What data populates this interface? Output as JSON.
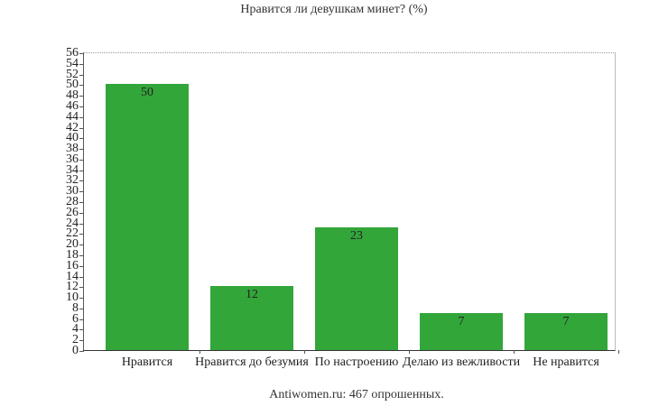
{
  "title": "Нравится ли девушкам минет? (%)",
  "footer": "Antiwomen.ru: 467 опрошенных.",
  "colors": {
    "bar": "#33a63a",
    "axis": "#555555"
  },
  "chart_data": {
    "type": "bar",
    "title": "Нравится ли девушкам минет? (%)",
    "xlabel": "",
    "ylabel": "",
    "categories": [
      "Нравится",
      "Нравится до безумия",
      "По настроению",
      "Делаю из вежливости",
      "Не нравится"
    ],
    "values": [
      50,
      12,
      23,
      7,
      7
    ],
    "ylim": [
      0,
      56
    ],
    "yticks": [
      0,
      2,
      4,
      6,
      8,
      10,
      12,
      14,
      16,
      18,
      20,
      22,
      24,
      26,
      28,
      30,
      32,
      34,
      36,
      38,
      40,
      42,
      44,
      46,
      48,
      50,
      52,
      54,
      56
    ],
    "grid": false,
    "legend": null,
    "annotation": "Antiwomen.ru: 467 опрошенных."
  }
}
